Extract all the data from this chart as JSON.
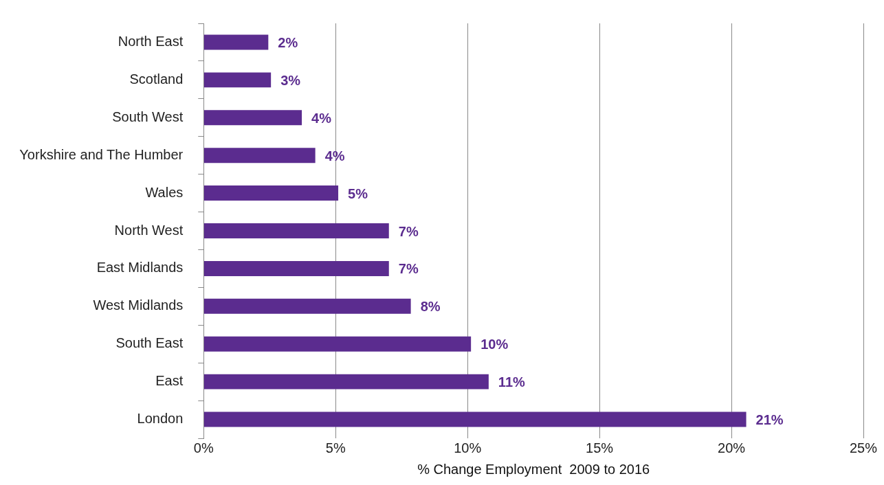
{
  "chart_data": {
    "type": "bar",
    "orientation": "horizontal",
    "xlabel": "% Change Employment  2009 to 2016",
    "categories": [
      "North East",
      "Scotland",
      "South West",
      "Yorkshire and The Humber",
      "Wales",
      "North West",
      "East Midlands",
      "West Midlands",
      "South East",
      "East",
      "London"
    ],
    "values": [
      2.45,
      2.55,
      3.72,
      4.23,
      5.1,
      7.02,
      7.02,
      7.85,
      10.13,
      10.8,
      20.56
    ],
    "value_labels": [
      "2%",
      "3%",
      "4%",
      "4%",
      "5%",
      "7%",
      "7%",
      "8%",
      "10%",
      "11%",
      "21%"
    ],
    "color": "#5b2c8f",
    "xlim": [
      0,
      25
    ],
    "xticks": [
      {
        "value": 0,
        "label": "0%"
      },
      {
        "value": 5,
        "label": "5%"
      },
      {
        "value": 10,
        "label": "10%"
      },
      {
        "value": 15,
        "label": "15%"
      },
      {
        "value": 20,
        "label": "20%"
      },
      {
        "value": 25,
        "label": "25%"
      }
    ],
    "grid": "x",
    "legend": false
  }
}
